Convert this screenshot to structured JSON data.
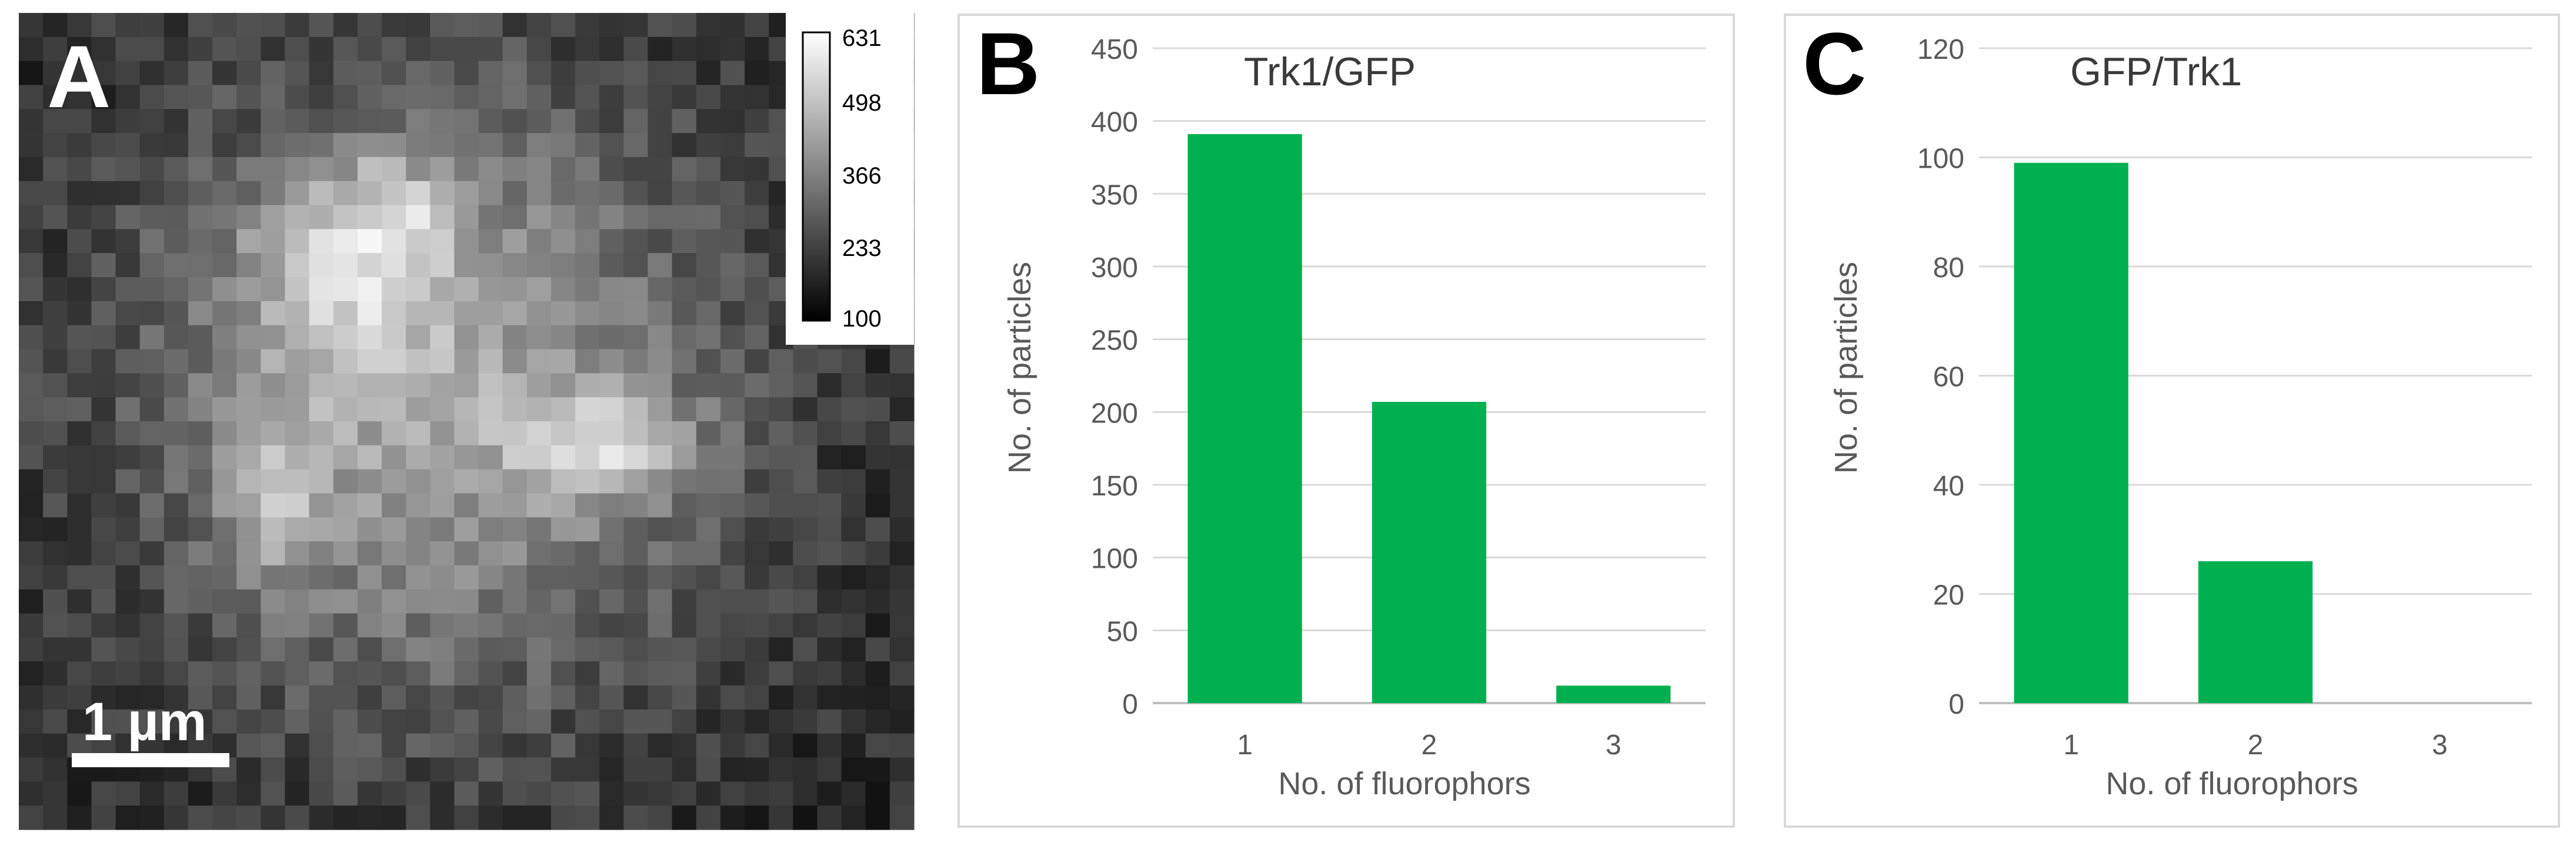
{
  "panel_a": {
    "letter": "A",
    "scale_bar_label": "1 µm",
    "colorbar_ticks": [
      "631",
      "498",
      "366",
      "233",
      "100"
    ],
    "colorbar_range": [
      100,
      631
    ],
    "colormap": "grayscale"
  },
  "chart_data": [
    {
      "panel_letter": "B",
      "type": "bar",
      "title": "Trk1/GFP",
      "xlabel": "No. of fluorophors",
      "ylabel": "No. of particles",
      "categories": [
        "1",
        "2",
        "3"
      ],
      "values": [
        391,
        207,
        12
      ],
      "ylim": [
        0,
        450
      ],
      "yticks": [
        "0",
        "50",
        "100",
        "150",
        "200",
        "250",
        "300",
        "350",
        "400",
        "450"
      ],
      "grid": true,
      "bar_color": "#00b050"
    },
    {
      "panel_letter": "C",
      "type": "bar",
      "title": "GFP/Trk1",
      "xlabel": "No. of fluorophors",
      "ylabel": "No. of particles",
      "categories": [
        "1",
        "2",
        "3"
      ],
      "values": [
        99,
        26,
        0
      ],
      "ylim": [
        0,
        120
      ],
      "yticks": [
        "0",
        "20",
        "40",
        "60",
        "80",
        "100",
        "120"
      ],
      "grid": true,
      "bar_color": "#00b050"
    }
  ]
}
